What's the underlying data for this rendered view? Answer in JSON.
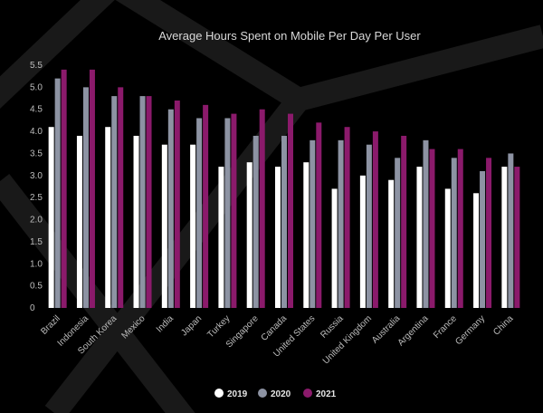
{
  "chart_data": {
    "type": "bar",
    "title": "Average Hours Spent on Mobile Per Day Per User",
    "xlabel": "",
    "ylabel": "",
    "ylim": [
      0,
      5.5
    ],
    "y_ticks": [
      "0",
      "0.5",
      "1.0",
      "1.5",
      "2.0",
      "2.5",
      "3.0",
      "3.5",
      "4.0",
      "4.5",
      "5.0",
      "5.5"
    ],
    "grid": false,
    "legend_position": "bottom",
    "categories": [
      "Brazil",
      "Indonesia",
      "South Korea",
      "Mexico",
      "India",
      "Japan",
      "Turkey",
      "Singapore",
      "Canada",
      "United States",
      "Russia",
      "United Kingdom",
      "Australia",
      "Argentina",
      "France",
      "Germany",
      "China"
    ],
    "series": [
      {
        "name": "2019",
        "color": "#ffffff",
        "values": [
          4.1,
          3.9,
          4.1,
          3.9,
          3.7,
          3.7,
          3.2,
          3.3,
          3.2,
          3.3,
          2.7,
          3.0,
          2.9,
          3.2,
          2.7,
          2.6,
          3.2
        ]
      },
      {
        "name": "2020",
        "color": "#8d93a3",
        "values": [
          5.2,
          5.0,
          4.8,
          4.8,
          4.5,
          4.3,
          4.3,
          3.9,
          3.9,
          3.8,
          3.8,
          3.7,
          3.4,
          3.8,
          3.4,
          3.1,
          3.5
        ]
      },
      {
        "name": "2021",
        "color": "#8b1a6b",
        "values": [
          5.4,
          5.4,
          5.0,
          4.8,
          4.7,
          4.6,
          4.4,
          4.5,
          4.4,
          4.2,
          4.1,
          4.0,
          3.9,
          3.6,
          3.6,
          3.4,
          3.2
        ]
      }
    ]
  },
  "colors": {
    "background": "#000000",
    "text": "#bdbdbd",
    "title": "#d8d8d8"
  }
}
